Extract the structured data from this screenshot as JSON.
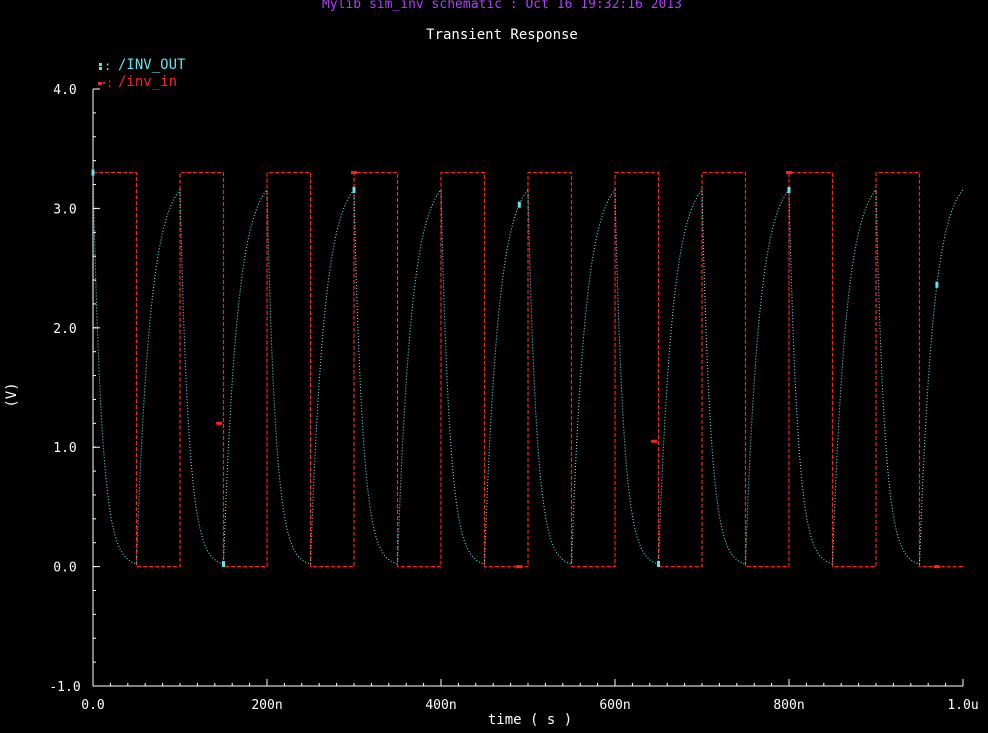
{
  "header": {
    "title": "Mylib sim_inv schematic : Oct 16 19:32:16 2013"
  },
  "colors": {
    "background": "#000000",
    "axis": "#ffffff",
    "inv_out": "#5fe6ee",
    "inv_in": "#ff2020",
    "header": "#b23cff"
  },
  "chart_data": {
    "type": "line",
    "title": "Transient Response",
    "xlabel": "time ( s )",
    "ylabel": "(V)",
    "xlim": [
      0,
      1e-06
    ],
    "ylim": [
      -1.0,
      4.0
    ],
    "grid": false,
    "legend_position": "top-left",
    "x_ticks": [
      {
        "value": 0,
        "label": "0.0"
      },
      {
        "value": 2e-07,
        "label": "200n"
      },
      {
        "value": 4e-07,
        "label": "400n"
      },
      {
        "value": 6e-07,
        "label": "600n"
      },
      {
        "value": 8e-07,
        "label": "800n"
      },
      {
        "value": 1e-06,
        "label": "1.0u"
      }
    ],
    "y_ticks": [
      {
        "value": 4.0,
        "label": "4.0"
      },
      {
        "value": 3.0,
        "label": "3.0"
      },
      {
        "value": 2.0,
        "label": "2.0"
      },
      {
        "value": 1.0,
        "label": "1.0"
      },
      {
        "value": 0.0,
        "label": "0.0"
      },
      {
        "value": -1.0,
        "label": "-1.0"
      }
    ],
    "series": [
      {
        "name": "/INV_OUT",
        "style": "dotted",
        "color": "#5fe6ee",
        "description": "inverter output: falls from 3.3V toward 0V after each input rising edge, rises back toward 3.3V after each input falling edge",
        "high": 3.3,
        "low": 0.0,
        "fall_time_constant_s": 1e-08,
        "rise_time_constant_s": 1.6e-08,
        "x": [
          0,
          5e-09,
          1e-08,
          2e-08,
          3e-08,
          5e-08,
          5.5e-08,
          6e-08,
          7e-08,
          8e-08,
          1e-07,
          1.05e-07,
          1.1e-07,
          1.2e-07,
          1.5e-07,
          1.55e-07,
          1.6e-07,
          1.7e-07,
          2e-07,
          2.5e-07,
          3e-07,
          3.5e-07,
          4e-07,
          4.5e-07,
          5e-07,
          5.5e-07,
          6e-07,
          6.5e-07,
          7e-07,
          7.5e-07,
          8e-07,
          8.5e-07,
          9e-07,
          9.5e-07,
          1e-06
        ],
        "y": [
          3.0,
          1.8,
          1.1,
          0.4,
          0.15,
          0.0,
          0.9,
          1.6,
          2.4,
          2.9,
          3.25,
          2.0,
          1.2,
          0.45,
          0.0,
          0.9,
          1.6,
          2.45,
          3.25,
          0.0,
          3.25,
          0.0,
          3.25,
          0.0,
          3.25,
          0.0,
          3.25,
          0.0,
          3.25,
          0.0,
          3.25,
          0.0,
          3.25,
          0.0,
          3.25
        ]
      },
      {
        "name": "/inv_in",
        "style": "dashed",
        "color": "#ff2020",
        "description": "square-wave input: 3.3V high for 50ns, 0V low for 50ns, period 100ns, starting high",
        "x": [
          0,
          5e-08,
          5e-08,
          1e-07,
          1e-07,
          1.5e-07,
          1.5e-07,
          2e-07,
          2e-07,
          2.5e-07,
          2.5e-07,
          3e-07,
          3e-07,
          3.5e-07,
          3.5e-07,
          4e-07,
          4e-07,
          4.5e-07,
          4.5e-07,
          5e-07,
          5e-07,
          5.5e-07,
          5.5e-07,
          6e-07,
          6e-07,
          6.5e-07,
          6.5e-07,
          7e-07,
          7e-07,
          7.5e-07,
          7.5e-07,
          8e-07,
          8e-07,
          8.5e-07,
          8.5e-07,
          9e-07,
          9e-07,
          9.5e-07,
          9.5e-07,
          1e-06
        ],
        "y": [
          3.3,
          3.3,
          0,
          0,
          3.3,
          3.3,
          0,
          0,
          3.3,
          3.3,
          0,
          0,
          3.3,
          3.3,
          0,
          0,
          3.3,
          3.3,
          0,
          0,
          3.3,
          3.3,
          0,
          0,
          3.3,
          3.3,
          0,
          0,
          3.3,
          3.3,
          0,
          0,
          3.3,
          3.3,
          0,
          0,
          3.3,
          3.3,
          0,
          0
        ]
      }
    ]
  }
}
